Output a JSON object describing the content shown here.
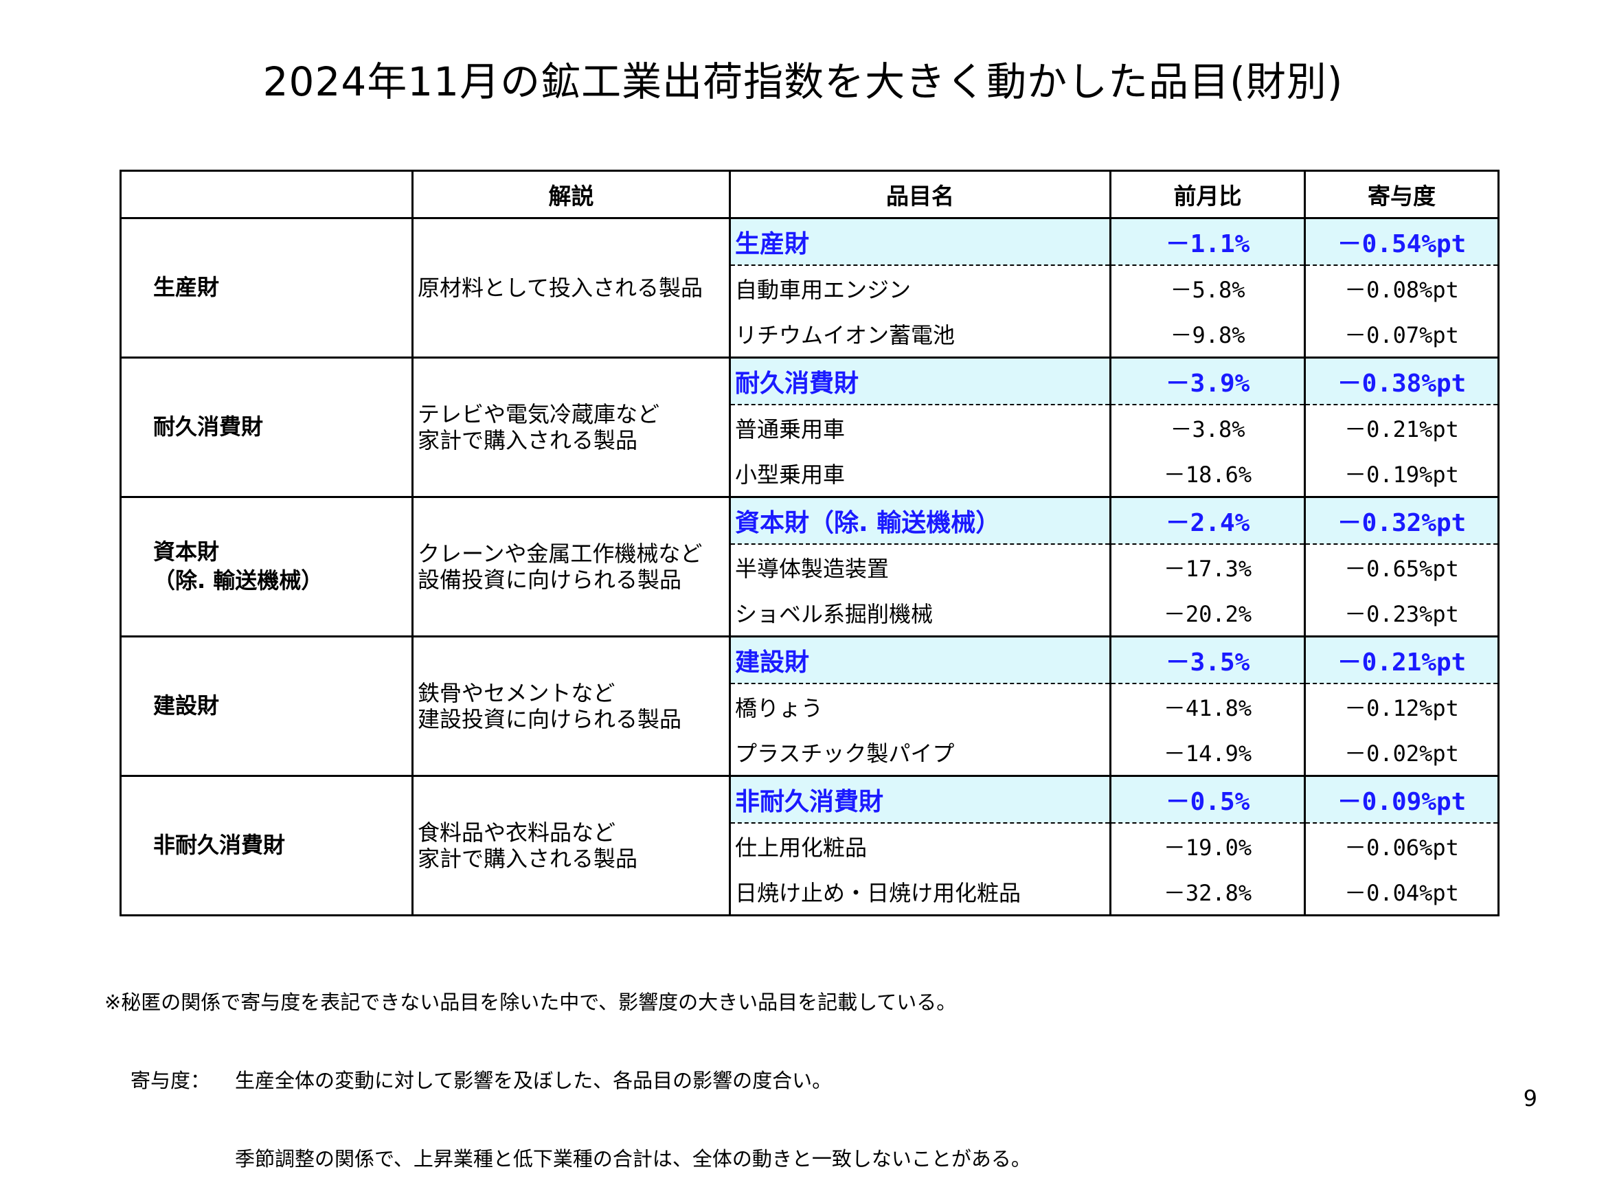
{
  "title": "2024年11月の鉱工業出荷指数を大きく動かした品目(財別)",
  "table": {
    "headers": [
      "",
      "解説",
      "品目名",
      "前月比",
      "寄与度"
    ],
    "groups": [
      {
        "name": "生産財",
        "desc": "原材料として投入される製品",
        "summary": {
          "item": "生産財",
          "mom": "－1.1%",
          "contrib": "－0.54%pt"
        },
        "items": [
          {
            "item": "自動車用エンジン",
            "mom": "－5.8%",
            "contrib": "－0.08%pt"
          },
          {
            "item": "リチウムイオン蓄電池",
            "mom": "－9.8%",
            "contrib": "－0.07%pt"
          }
        ]
      },
      {
        "name": "耐久消費財",
        "desc": "テレビや電気冷蔵庫など\n家計で購入される製品",
        "summary": {
          "item": "耐久消費財",
          "mom": "－3.9%",
          "contrib": "－0.38%pt"
        },
        "items": [
          {
            "item": "普通乗用車",
            "mom": "－3.8%",
            "contrib": "－0.21%pt"
          },
          {
            "item": "小型乗用車",
            "mom": "－18.6%",
            "contrib": "－0.19%pt"
          }
        ]
      },
      {
        "name": "資本財\n（除. 輸送機械）",
        "desc": "クレーンや金属工作機械など\n設備投資に向けられる製品",
        "summary": {
          "item": "資本財（除. 輸送機械）",
          "mom": "－2.4%",
          "contrib": "－0.32%pt"
        },
        "items": [
          {
            "item": "半導体製造装置",
            "mom": "－17.3%",
            "contrib": "－0.65%pt"
          },
          {
            "item": "ショベル系掘削機械",
            "mom": "－20.2%",
            "contrib": "－0.23%pt"
          }
        ]
      },
      {
        "name": "建設財",
        "desc": "鉄骨やセメントなど\n建設投資に向けられる製品",
        "summary": {
          "item": "建設財",
          "mom": "－3.5%",
          "contrib": "－0.21%pt"
        },
        "items": [
          {
            "item": "橋りょう",
            "mom": "－41.8%",
            "contrib": "－0.12%pt"
          },
          {
            "item": "プラスチック製パイプ",
            "mom": "－14.9%",
            "contrib": "－0.02%pt"
          }
        ]
      },
      {
        "name": "非耐久消費財",
        "desc": "食料品や衣料品など\n家計で購入される製品",
        "summary": {
          "item": "非耐久消費財",
          "mom": "－0.5%",
          "contrib": "－0.09%pt"
        },
        "items": [
          {
            "item": "仕上用化粧品",
            "mom": "－19.0%",
            "contrib": "－0.06%pt"
          },
          {
            "item": "日焼け止め・日焼け用化粧品",
            "mom": "－32.8%",
            "contrib": "－0.04%pt"
          }
        ]
      }
    ]
  },
  "notes": {
    "line1": "※秘匿の関係で寄与度を表記できない品目を除いた中で、影響度の大きい品目を記載している。",
    "label": "寄与度：",
    "line2": "生産全体の変動に対して影響を及ぼした、各品目の影響の度合い。",
    "line3": "季節調整の関係で、上昇業種と低下業種の合計は、全体の動きと一致しないことがある。"
  },
  "page_number": "9",
  "colors": {
    "summary_bg": "#dcf8fc",
    "summary_text": "#1a1aff"
  }
}
